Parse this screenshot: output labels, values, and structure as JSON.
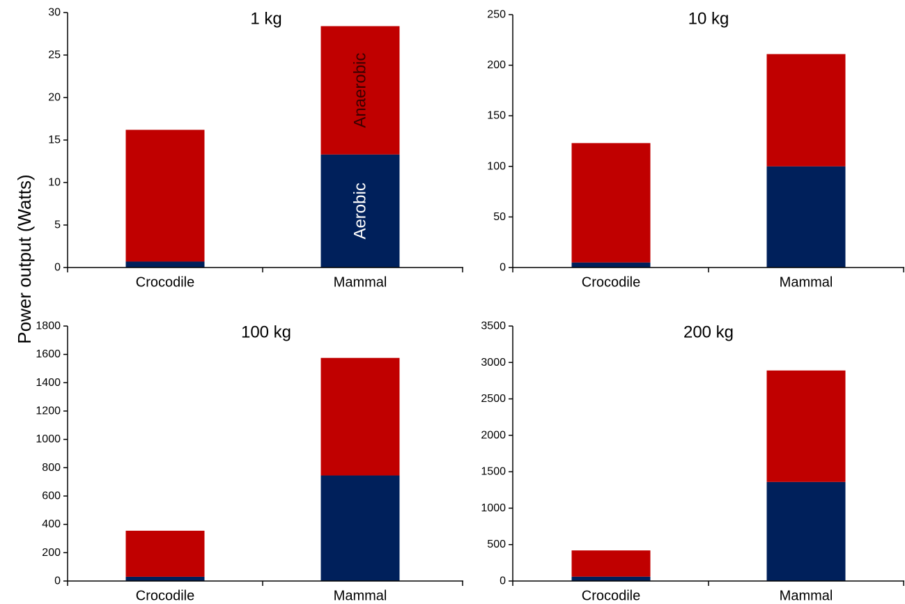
{
  "ylabel": "Power output  (Watts)",
  "colors": {
    "aerobic": "#00205b",
    "anaerobic": "#c00000",
    "axis": "#000000"
  },
  "chart_data": [
    {
      "type": "bar",
      "stacked": true,
      "title": "1 kg",
      "categories": [
        "Crocodile",
        "Mammal"
      ],
      "series": [
        {
          "name": "Aerobic",
          "color": "#00205b",
          "values": [
            0.7,
            13.3
          ]
        },
        {
          "name": "Anaerobic",
          "color": "#c00000",
          "values": [
            15.5,
            15.1
          ]
        }
      ],
      "ylim": [
        0,
        30
      ],
      "yticks": [
        0,
        5,
        10,
        15,
        20,
        25,
        30
      ],
      "grid": false
    },
    {
      "type": "bar",
      "stacked": true,
      "title": "10 kg",
      "categories": [
        "Crocodile",
        "Mammal"
      ],
      "series": [
        {
          "name": "Aerobic",
          "color": "#00205b",
          "values": [
            5,
            100
          ]
        },
        {
          "name": "Anaerobic",
          "color": "#c00000",
          "values": [
            118,
            111
          ]
        }
      ],
      "ylim": [
        0,
        250
      ],
      "yticks": [
        0,
        50,
        100,
        150,
        200,
        250
      ],
      "grid": false
    },
    {
      "type": "bar",
      "stacked": true,
      "title": "100 kg",
      "categories": [
        "Crocodile",
        "Mammal"
      ],
      "series": [
        {
          "name": "Aerobic",
          "color": "#00205b",
          "values": [
            30,
            745
          ]
        },
        {
          "name": "Anaerobic",
          "color": "#c00000",
          "values": [
            325,
            830
          ]
        }
      ],
      "ylim": [
        0,
        1800
      ],
      "yticks": [
        0,
        200,
        400,
        600,
        800,
        1000,
        1200,
        1400,
        1600,
        1800
      ],
      "grid": false
    },
    {
      "type": "bar",
      "stacked": true,
      "title": "200 kg",
      "categories": [
        "Crocodile",
        "Mammal"
      ],
      "series": [
        {
          "name": "Aerobic",
          "color": "#00205b",
          "values": [
            60,
            1360
          ]
        },
        {
          "name": "Anaerobic",
          "color": "#c00000",
          "values": [
            360,
            1530
          ]
        }
      ],
      "ylim": [
        0,
        3500
      ],
      "yticks": [
        0,
        500,
        1000,
        1500,
        2000,
        2500,
        3000,
        3500
      ],
      "grid": false
    }
  ],
  "annotations": {
    "aerobic": "Aerobic",
    "anaerobic": "Anaerobic"
  }
}
